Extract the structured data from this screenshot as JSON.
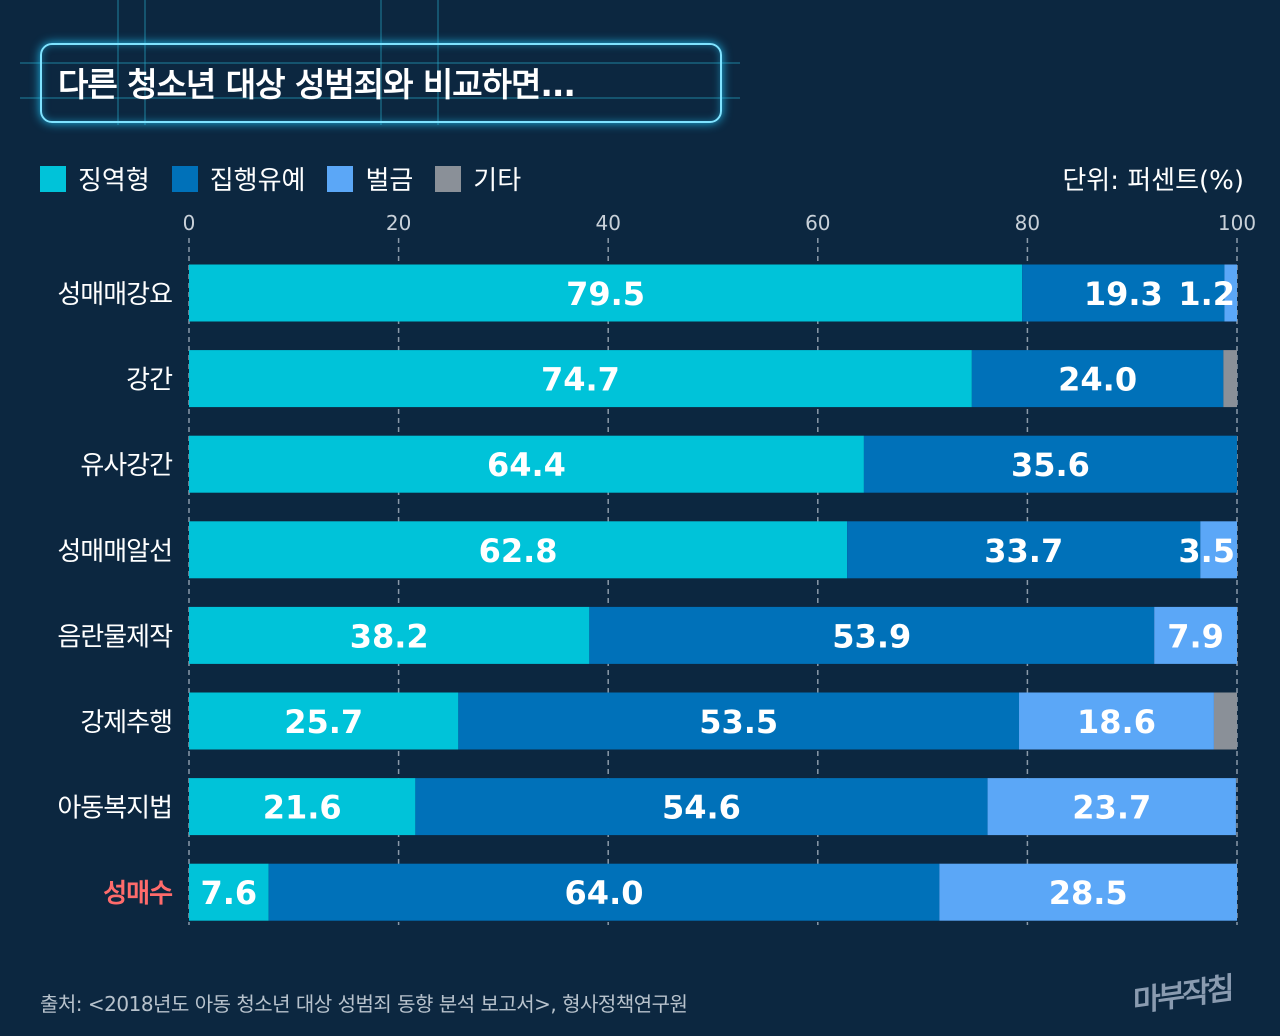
{
  "title": "다른 청소년 대상 성범죄와 비교하면...",
  "unit_label": "단위: 퍼센트(%)",
  "source": "출처: <2018년도 아동 청소년 대상 성범죄 동향 분석 보고서>, 형사정책연구원",
  "logo": "마부작침",
  "colors": {
    "background": "#0c2740",
    "highlight_category": "#ff6b6b"
  },
  "chart_data": {
    "type": "bar",
    "orientation": "horizontal",
    "stacked": true,
    "title": "다른 청소년 대상 성범죄와 비교하면...",
    "xlim": [
      0,
      100
    ],
    "xticks": [
      "0",
      "20",
      "40",
      "60",
      "80",
      "100"
    ],
    "grid": true,
    "legend_position": "top-left",
    "categories": [
      "성매매강요",
      "강간",
      "유사강간",
      "성매매알선",
      "음란물제작",
      "강제추행",
      "아동복지법",
      "성매수"
    ],
    "highlight_category": "성매수",
    "series": [
      {
        "name": "징역형",
        "color": "#00c3d9",
        "values": [
          79.5,
          74.7,
          64.4,
          62.8,
          38.2,
          25.7,
          21.6,
          7.6
        ],
        "labeled": true
      },
      {
        "name": "집행유예",
        "color": "#0071b9",
        "values": [
          19.3,
          24.0,
          35.6,
          33.7,
          53.9,
          53.5,
          54.6,
          64.0
        ],
        "labeled": true
      },
      {
        "name": "벌금",
        "color": "#5ba7f7",
        "values": [
          1.2,
          0,
          0,
          3.5,
          7.9,
          18.6,
          23.7,
          28.5
        ],
        "labeled": true
      },
      {
        "name": "기타",
        "color": "#8a9098",
        "values": [
          0,
          1.3,
          0,
          0,
          0,
          2.2,
          0,
          0
        ],
        "labeled": false
      }
    ]
  }
}
